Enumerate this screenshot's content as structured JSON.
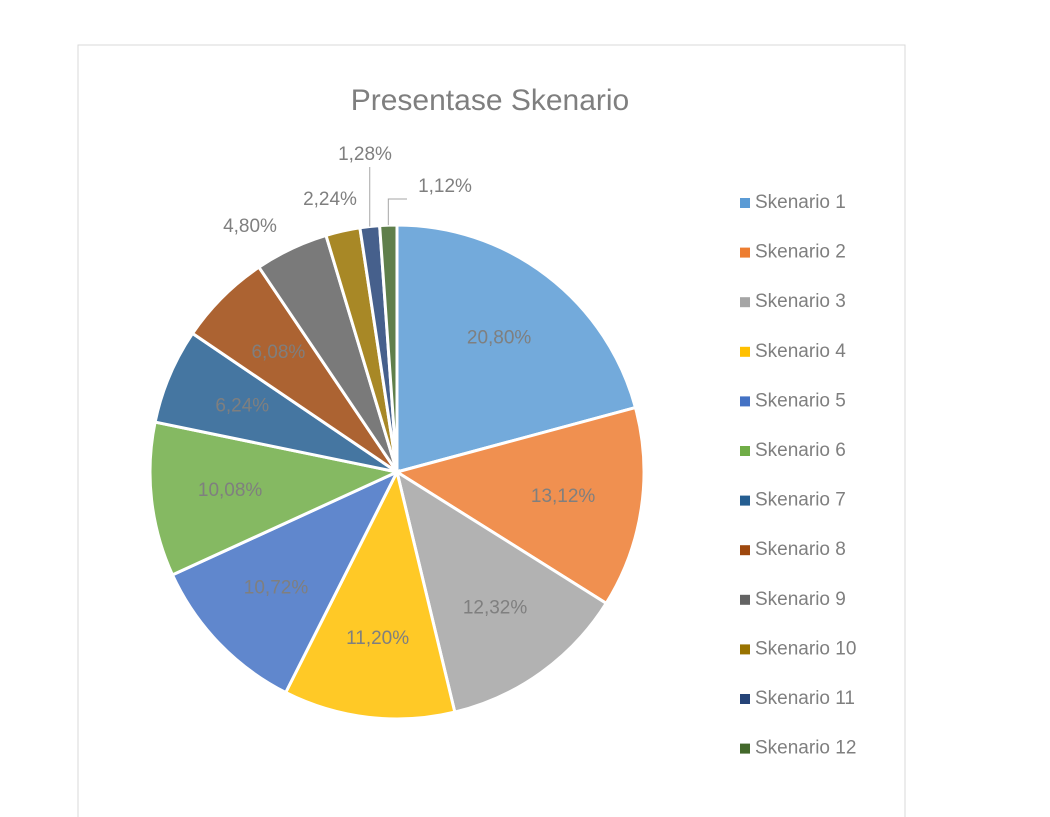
{
  "chart_data": {
    "type": "pie",
    "title": "Presentase Skenario",
    "categories": [
      "Skenario 1",
      "Skenario 2",
      "Skenario 3",
      "Skenario 4",
      "Skenario 5",
      "Skenario 6",
      "Skenario 7",
      "Skenario 8",
      "Skenario 9",
      "Skenario 10",
      "Skenario 11",
      "Skenario 12"
    ],
    "values": [
      20.8,
      13.12,
      12.32,
      11.2,
      10.72,
      10.08,
      6.24,
      6.08,
      4.8,
      2.24,
      1.28,
      1.12
    ],
    "value_labels": [
      "20,80%",
      "13,12%",
      "12,32%",
      "11,20%",
      "10,72%",
      "10,08%",
      "6,24%",
      "6,08%",
      "4,80%",
      "2,24%",
      "1,28%",
      "1,12%"
    ],
    "colors": [
      "#5B9BD5",
      "#ED7D31",
      "#A5A5A5",
      "#FFC000",
      "#4472C4",
      "#70AD47",
      "#255E91",
      "#9E480E",
      "#636363",
      "#997300",
      "#264478",
      "#43682B"
    ],
    "legend": "right"
  }
}
